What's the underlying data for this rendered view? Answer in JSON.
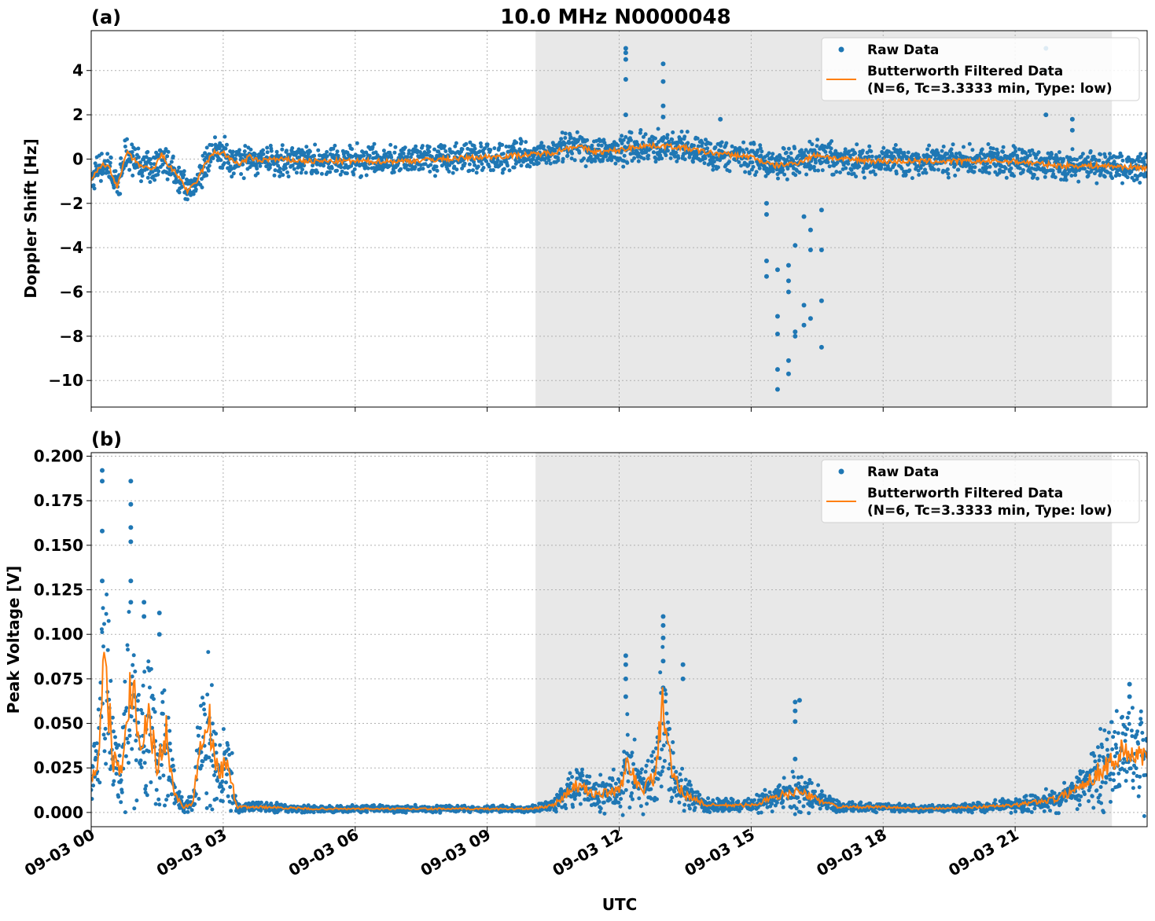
{
  "figure": {
    "title": "10.0 MHz N0000048",
    "xlabel": "UTC",
    "x_ticks": [
      "09-03 00",
      "09-03 03",
      "09-03 06",
      "09-03 09",
      "09-03 12",
      "09-03 15",
      "09-03 18",
      "09-03 21"
    ],
    "colors": {
      "raw": "#1f77b4",
      "filtered": "#ff7f0e",
      "shade": "#e8e8e8"
    }
  },
  "chart_data": [
    {
      "type": "scatter",
      "panel_label": "(a)",
      "ylabel": "Doppler Shift [Hz]",
      "xlim_hours": [
        0,
        24
      ],
      "ylim": [
        -11.2,
        5.8
      ],
      "y_ticks": [
        "4",
        "2",
        "0",
        "−2",
        "−4",
        "−6",
        "−8",
        "−10"
      ],
      "y_tick_values": [
        4,
        2,
        0,
        -2,
        -4,
        -6,
        -8,
        -10
      ],
      "shaded_region_hours": [
        10.1,
        23.2
      ],
      "legend": {
        "raw": "Raw Data",
        "filtered_line1": "Butterworth Filtered Data",
        "filtered_line2": "(N=6, Tc=3.3333 min, Type: low)",
        "placement": "top-right"
      },
      "filtered_series": {
        "name": "Butterworth Filtered Data",
        "x": [
          0.0,
          0.2,
          0.4,
          0.6,
          0.8,
          1.0,
          1.2,
          1.4,
          1.6,
          1.8,
          2.0,
          2.2,
          2.4,
          2.6,
          2.8,
          3.0,
          3.2,
          3.4,
          3.6,
          3.8,
          4.0,
          5.0,
          6.0,
          7.0,
          8.0,
          9.0,
          10.0,
          10.5,
          11.0,
          11.5,
          12.0,
          12.5,
          13.0,
          13.5,
          14.0,
          15.0,
          15.5,
          16.0,
          16.5,
          17.0,
          18.0,
          19.0,
          20.0,
          21.0,
          21.5,
          22.0,
          23.0,
          24.0
        ],
        "y": [
          -1.0,
          -0.3,
          -0.3,
          -1.3,
          0.3,
          -0.1,
          -0.4,
          -0.5,
          0.2,
          -0.4,
          -0.8,
          -1.5,
          -1.0,
          -0.2,
          0.3,
          0.3,
          -0.1,
          -0.2,
          0.1,
          -0.1,
          0.0,
          -0.1,
          -0.1,
          -0.1,
          0.0,
          0.1,
          0.2,
          0.3,
          0.6,
          0.3,
          0.4,
          0.6,
          0.6,
          0.5,
          0.3,
          0.1,
          -0.3,
          -0.2,
          0.2,
          0.0,
          -0.1,
          -0.1,
          -0.1,
          -0.1,
          -0.2,
          -0.3,
          -0.3,
          -0.4
        ]
      },
      "raw_series": {
        "name": "Raw Data",
        "outliers": [
          {
            "x": 12.15,
            "y": [
              5.0,
              4.8,
              4.5,
              3.6,
              2.0
            ]
          },
          {
            "x": 13.0,
            "y": [
              4.3,
              3.5,
              2.4,
              1.9
            ]
          },
          {
            "x": 21.7,
            "y": [
              5.0,
              4.0,
              2.0
            ]
          },
          {
            "x": 22.3,
            "y": [
              1.8,
              1.3
            ]
          },
          {
            "x": 14.3,
            "y": [
              1.8
            ]
          },
          {
            "x": 15.35,
            "y": [
              -2.0,
              -2.5,
              -4.6,
              -5.3
            ]
          },
          {
            "x": 15.6,
            "y": [
              -5.0,
              -7.1,
              -7.9,
              -9.5,
              -10.4
            ]
          },
          {
            "x": 15.85,
            "y": [
              -4.8,
              -5.5,
              -6.0,
              -9.1,
              -9.7
            ]
          },
          {
            "x": 16.0,
            "y": [
              -3.9,
              -7.8,
              -8.0
            ]
          },
          {
            "x": 16.2,
            "y": [
              -2.6,
              -6.6,
              -7.5
            ]
          },
          {
            "x": 16.35,
            "y": [
              -3.2,
              -4.1,
              -7.2
            ]
          },
          {
            "x": 16.6,
            "y": [
              -2.3,
              -4.1,
              -6.4,
              -8.5
            ]
          }
        ]
      }
    },
    {
      "type": "scatter",
      "panel_label": "(b)",
      "ylabel": "Peak Voltage [V]",
      "xlim_hours": [
        0,
        24
      ],
      "ylim": [
        -0.008,
        0.202
      ],
      "y_ticks": [
        "0.200",
        "0.175",
        "0.150",
        "0.125",
        "0.100",
        "0.075",
        "0.050",
        "0.025",
        "0.000"
      ],
      "y_tick_values": [
        0.2,
        0.175,
        0.15,
        0.125,
        0.1,
        0.075,
        0.05,
        0.025,
        0.0
      ],
      "shaded_region_hours": [
        10.1,
        23.2
      ],
      "legend": {
        "raw": "Raw Data",
        "filtered_line1": "Butterworth Filtered Data",
        "filtered_line2": "(N=6, Tc=3.3333 min, Type: low)",
        "placement": "top-right"
      },
      "filtered_series": {
        "name": "Butterworth Filtered Data",
        "x": [
          0.0,
          0.15,
          0.3,
          0.5,
          0.7,
          0.9,
          1.1,
          1.3,
          1.5,
          1.7,
          1.9,
          2.1,
          2.3,
          2.5,
          2.7,
          2.9,
          3.1,
          3.3,
          3.5,
          4.0,
          5.0,
          6.0,
          7.0,
          8.0,
          9.0,
          10.0,
          10.5,
          11.0,
          11.5,
          12.0,
          12.2,
          12.5,
          12.8,
          13.0,
          13.2,
          13.5,
          14.0,
          15.0,
          16.0,
          17.0,
          18.0,
          19.0,
          20.0,
          21.0,
          22.0,
          22.5,
          23.0,
          23.5,
          24.0
        ],
        "y": [
          0.02,
          0.03,
          0.085,
          0.03,
          0.025,
          0.08,
          0.04,
          0.055,
          0.025,
          0.045,
          0.01,
          0.003,
          0.005,
          0.04,
          0.05,
          0.02,
          0.03,
          0.003,
          0.003,
          0.003,
          0.002,
          0.002,
          0.002,
          0.002,
          0.002,
          0.002,
          0.004,
          0.015,
          0.01,
          0.012,
          0.028,
          0.012,
          0.02,
          0.06,
          0.02,
          0.01,
          0.004,
          0.004,
          0.012,
          0.003,
          0.003,
          0.002,
          0.003,
          0.004,
          0.008,
          0.015,
          0.025,
          0.035,
          0.03
        ]
      },
      "raw_series": {
        "name": "Raw Data",
        "outliers": [
          {
            "x": 0.25,
            "y": [
              0.192,
              0.186,
              0.158,
              0.13
            ]
          },
          {
            "x": 0.9,
            "y": [
              0.186,
              0.173,
              0.16,
              0.152,
              0.13,
              0.118
            ]
          },
          {
            "x": 1.2,
            "y": [
              0.118,
              0.11
            ]
          },
          {
            "x": 1.55,
            "y": [
              0.112,
              0.1
            ]
          },
          {
            "x": 12.15,
            "y": [
              0.088,
              0.083,
              0.075,
              0.065
            ]
          },
          {
            "x": 13.0,
            "y": [
              0.11,
              0.105,
              0.098,
              0.085,
              0.07
            ]
          },
          {
            "x": 13.45,
            "y": [
              0.083,
              0.075
            ]
          },
          {
            "x": 16.0,
            "y": [
              0.062,
              0.057,
              0.051,
              0.03
            ]
          },
          {
            "x": 16.1,
            "y": [
              0.063
            ]
          },
          {
            "x": 23.6,
            "y": [
              0.072,
              0.065
            ]
          }
        ]
      }
    }
  ]
}
